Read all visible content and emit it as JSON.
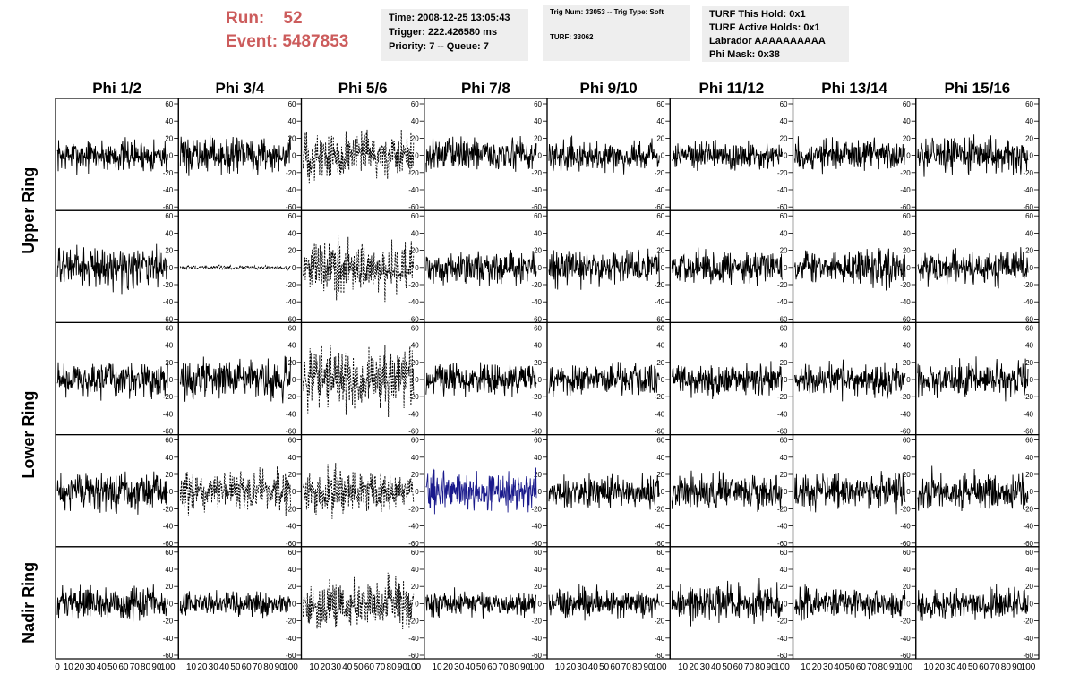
{
  "header": {
    "run_label": "Run:",
    "run_value": "52",
    "event_label": "Event:",
    "event_value": "5487853",
    "time_box": [
      "Time: 2008-12-25 13:05:43",
      "Trigger: 222.426580 ms",
      "Priority: 7 -- Queue: 7"
    ],
    "trig_box": [
      "Trig Num: 33053 -- Trig Type: Soft",
      "",
      "TURF: 33062"
    ],
    "turf_box": [
      "TURF This Hold: 0x1",
      "TURF Active Holds: 0x1",
      "Labrador AAAAAAAAAA",
      "Phi Mask: 0x38"
    ]
  },
  "chart_data": {
    "type": "line",
    "columns": [
      "Phi 1/2",
      "Phi 3/4",
      "Phi 5/6",
      "Phi 7/8",
      "Phi 9/10",
      "Phi 11/12",
      "Phi 13/14",
      "Phi 15/16"
    ],
    "ring_labels": [
      "Upper Ring",
      "Lower Ring",
      "Nadir Ring"
    ],
    "rows": 5,
    "ylim": [
      -60,
      60
    ],
    "yticks": [
      -60,
      -40,
      -20,
      0,
      20,
      40,
      60
    ],
    "xlim": [
      0,
      100
    ],
    "xticks_first": [
      "0",
      "10",
      "20",
      "30",
      "40",
      "50",
      "60",
      "70",
      "80",
      "90",
      "100"
    ],
    "xticks_other": [
      "",
      "10",
      "20",
      "30",
      "40",
      "50",
      "60",
      "70",
      "80",
      "90",
      "100"
    ],
    "samples_per_trace": 256,
    "panels": [
      {
        "row": 0,
        "col": 0,
        "amp": 12,
        "style": "solid",
        "color": "#000000"
      },
      {
        "row": 0,
        "col": 1,
        "amp": 13,
        "style": "solid",
        "color": "#000000"
      },
      {
        "row": 0,
        "col": 2,
        "amp": 18,
        "style": "dashed",
        "color": "#000000"
      },
      {
        "row": 0,
        "col": 3,
        "amp": 12,
        "style": "solid",
        "color": "#000000"
      },
      {
        "row": 0,
        "col": 4,
        "amp": 11,
        "style": "solid",
        "color": "#000000"
      },
      {
        "row": 0,
        "col": 5,
        "amp": 11,
        "style": "solid",
        "color": "#000000"
      },
      {
        "row": 0,
        "col": 6,
        "amp": 12,
        "style": "solid",
        "color": "#000000"
      },
      {
        "row": 0,
        "col": 7,
        "amp": 13,
        "style": "solid",
        "color": "#000000"
      },
      {
        "row": 1,
        "col": 0,
        "amp": 15,
        "style": "solid",
        "color": "#000000"
      },
      {
        "row": 1,
        "col": 1,
        "amp": 1.5,
        "style": "dashed",
        "color": "#000000"
      },
      {
        "row": 1,
        "col": 2,
        "amp": 20,
        "style": "dashed",
        "color": "#000000"
      },
      {
        "row": 1,
        "col": 3,
        "amp": 12,
        "style": "solid",
        "color": "#000000"
      },
      {
        "row": 1,
        "col": 4,
        "amp": 13,
        "style": "solid",
        "color": "#000000"
      },
      {
        "row": 1,
        "col": 5,
        "amp": 12,
        "style": "solid",
        "color": "#000000"
      },
      {
        "row": 1,
        "col": 6,
        "amp": 13,
        "style": "solid",
        "color": "#000000"
      },
      {
        "row": 1,
        "col": 7,
        "amp": 12,
        "style": "solid",
        "color": "#000000"
      },
      {
        "row": 2,
        "col": 0,
        "amp": 13,
        "style": "solid",
        "color": "#000000"
      },
      {
        "row": 2,
        "col": 1,
        "amp": 14,
        "style": "solid",
        "color": "#000000"
      },
      {
        "row": 2,
        "col": 2,
        "amp": 22,
        "style": "dashed",
        "color": "#000000"
      },
      {
        "row": 2,
        "col": 3,
        "amp": 12,
        "style": "solid",
        "color": "#000000"
      },
      {
        "row": 2,
        "col": 4,
        "amp": 12,
        "style": "solid",
        "color": "#000000"
      },
      {
        "row": 2,
        "col": 5,
        "amp": 12,
        "style": "solid",
        "color": "#000000"
      },
      {
        "row": 2,
        "col": 6,
        "amp": 12,
        "style": "solid",
        "color": "#000000"
      },
      {
        "row": 2,
        "col": 7,
        "amp": 13,
        "style": "solid",
        "color": "#000000"
      },
      {
        "row": 3,
        "col": 0,
        "amp": 14,
        "style": "solid",
        "color": "#000000"
      },
      {
        "row": 3,
        "col": 1,
        "amp": 15,
        "style": "dashed",
        "color": "#000000"
      },
      {
        "row": 3,
        "col": 2,
        "amp": 16,
        "style": "dashed",
        "color": "#000000"
      },
      {
        "row": 3,
        "col": 3,
        "amp": 15,
        "style": "solid",
        "color": "#1a1a8c"
      },
      {
        "row": 3,
        "col": 4,
        "amp": 12,
        "style": "solid",
        "color": "#000000"
      },
      {
        "row": 3,
        "col": 5,
        "amp": 13,
        "style": "solid",
        "color": "#000000"
      },
      {
        "row": 3,
        "col": 6,
        "amp": 13,
        "style": "solid",
        "color": "#000000"
      },
      {
        "row": 3,
        "col": 7,
        "amp": 14,
        "style": "solid",
        "color": "#000000"
      },
      {
        "row": 4,
        "col": 0,
        "amp": 12,
        "style": "solid",
        "color": "#000000"
      },
      {
        "row": 4,
        "col": 1,
        "amp": 9,
        "style": "solid",
        "color": "#000000"
      },
      {
        "row": 4,
        "col": 2,
        "amp": 18,
        "style": "dashed",
        "color": "#000000"
      },
      {
        "row": 4,
        "col": 3,
        "amp": 10,
        "style": "solid",
        "color": "#000000"
      },
      {
        "row": 4,
        "col": 4,
        "amp": 11,
        "style": "solid",
        "color": "#000000"
      },
      {
        "row": 4,
        "col": 5,
        "amp": 14,
        "style": "solid",
        "color": "#000000"
      },
      {
        "row": 4,
        "col": 6,
        "amp": 11,
        "style": "solid",
        "color": "#000000"
      },
      {
        "row": 4,
        "col": 7,
        "amp": 11,
        "style": "solid",
        "color": "#000000"
      }
    ]
  }
}
